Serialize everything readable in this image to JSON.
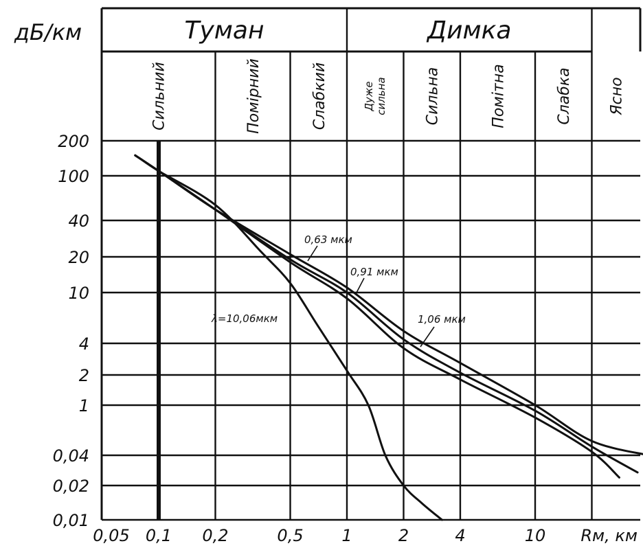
{
  "chart_data": {
    "type": "line",
    "title": "",
    "y_unit_label": "дБ/км",
    "x_unit_label": "Rм, км",
    "x_scale": "log",
    "y_scale": "piecewise",
    "x_ticks": [
      {
        "value": 0.05,
        "label": "0,05"
      },
      {
        "value": 0.1,
        "label": "0,1"
      },
      {
        "value": 0.2,
        "label": "0,2"
      },
      {
        "value": 0.5,
        "label": "0,5"
      },
      {
        "value": 1,
        "label": "1"
      },
      {
        "value": 2,
        "label": "2"
      },
      {
        "value": 4,
        "label": "4"
      },
      {
        "value": 10,
        "label": "10"
      }
    ],
    "y_ticks": [
      {
        "value": 200,
        "label": "200"
      },
      {
        "value": 100,
        "label": "100"
      },
      {
        "value": 40,
        "label": "40"
      },
      {
        "value": 20,
        "label": "20"
      },
      {
        "value": 10,
        "label": "10"
      },
      {
        "value": 4,
        "label": "4"
      },
      {
        "value": 2,
        "label": "2"
      },
      {
        "value": 1,
        "label": "1"
      },
      {
        "value": 0.04,
        "label": "0,04"
      },
      {
        "value": 0.02,
        "label": "0,02"
      },
      {
        "value": 0.01,
        "label": "0,01"
      }
    ],
    "header_groups": [
      {
        "label": "Туман",
        "x_from": 0.05,
        "x_to": 1
      },
      {
        "label": "Димка",
        "x_from": 1,
        "x_to": 20
      }
    ],
    "visibility_categories": [
      {
        "label": "Сильний",
        "x_from": 0.05,
        "x_to": 0.2
      },
      {
        "label": "Помірний",
        "x_from": 0.2,
        "x_to": 0.5
      },
      {
        "label": "Слабкий",
        "x_from": 0.5,
        "x_to": 1
      },
      {
        "label": "Дуже сильна",
        "lines": [
          "Дуже",
          "сильна"
        ],
        "x_from": 1,
        "x_to": 2
      },
      {
        "label": "Сильна",
        "x_from": 2,
        "x_to": 4
      },
      {
        "label": "Помітна",
        "x_from": 4,
        "x_to": 10
      },
      {
        "label": "Слабка",
        "x_from": 10,
        "x_to": 20
      },
      {
        "label": "Ясно",
        "x_from": 20,
        "x_to": 32
      }
    ],
    "series": [
      {
        "name": "0,63 мкм",
        "x": [
          0.075,
          0.1,
          0.2,
          0.5,
          1,
          2,
          4,
          10,
          20,
          40
        ],
        "y": [
          150,
          110,
          50,
          21,
          11,
          5,
          2.6,
          1,
          0.1,
          0.04
        ]
      },
      {
        "name": "0,91 мкм",
        "x": [
          0.075,
          0.1,
          0.2,
          0.5,
          1,
          2,
          4,
          10,
          20,
          35
        ],
        "y": [
          150,
          110,
          50,
          19,
          10,
          4.3,
          2.1,
          0.7,
          0.07,
          0.027
        ]
      },
      {
        "name": "1,06 мкм",
        "x": [
          0.075,
          0.1,
          0.2,
          0.5,
          1,
          2,
          4,
          10,
          20,
          28
        ],
        "y": [
          150,
          110,
          50,
          18,
          9,
          3.6,
          1.8,
          0.45,
          0.05,
          0.024
        ]
      },
      {
        "name": "λ=10,06мкм",
        "x": [
          0.08,
          0.1,
          0.2,
          0.35,
          0.5,
          0.7,
          1,
          1.3,
          1.6,
          2,
          2.5,
          3.2
        ],
        "y": [
          140,
          110,
          55,
          22,
          12,
          5.5,
          2.2,
          1,
          0.04,
          0.02,
          0.014,
          0.01
        ]
      }
    ],
    "grid": true
  }
}
